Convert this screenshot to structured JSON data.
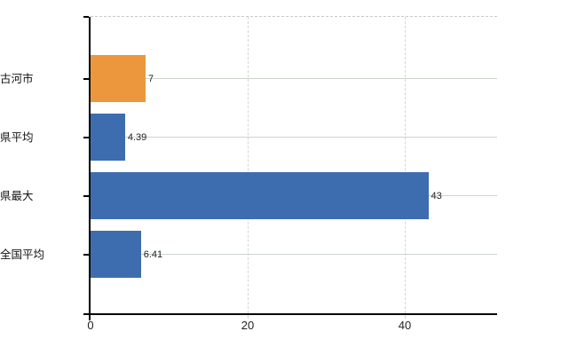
{
  "chart_data": {
    "type": "bar",
    "orientation": "horizontal",
    "categories": [
      "古河市",
      "県平均",
      "県最大",
      "全国平均"
    ],
    "values": [
      7,
      4.39,
      43,
      6.41
    ],
    "value_labels": [
      "7",
      "4.39",
      "43",
      "6.41"
    ],
    "bar_colors": [
      "#ec973d",
      "#3d6daf",
      "#3d6daf",
      "#3d6daf"
    ],
    "xticks": [
      0,
      20,
      40
    ],
    "xtick_labels": [
      "0",
      "20",
      "40"
    ],
    "xlim": [
      0,
      51.75
    ],
    "grid": true,
    "legend": false,
    "title": "",
    "xlabel": "",
    "ylabel": ""
  },
  "colors": {
    "highlight_bar": "#ec973d",
    "default_bar": "#3d6daf",
    "horizontal_gridline": "#ccd5cc",
    "vertical_gridline": "#d5d5d5",
    "plot_top_border": "#c9c9c9",
    "axis": "#000000",
    "background": "#ffffff"
  }
}
